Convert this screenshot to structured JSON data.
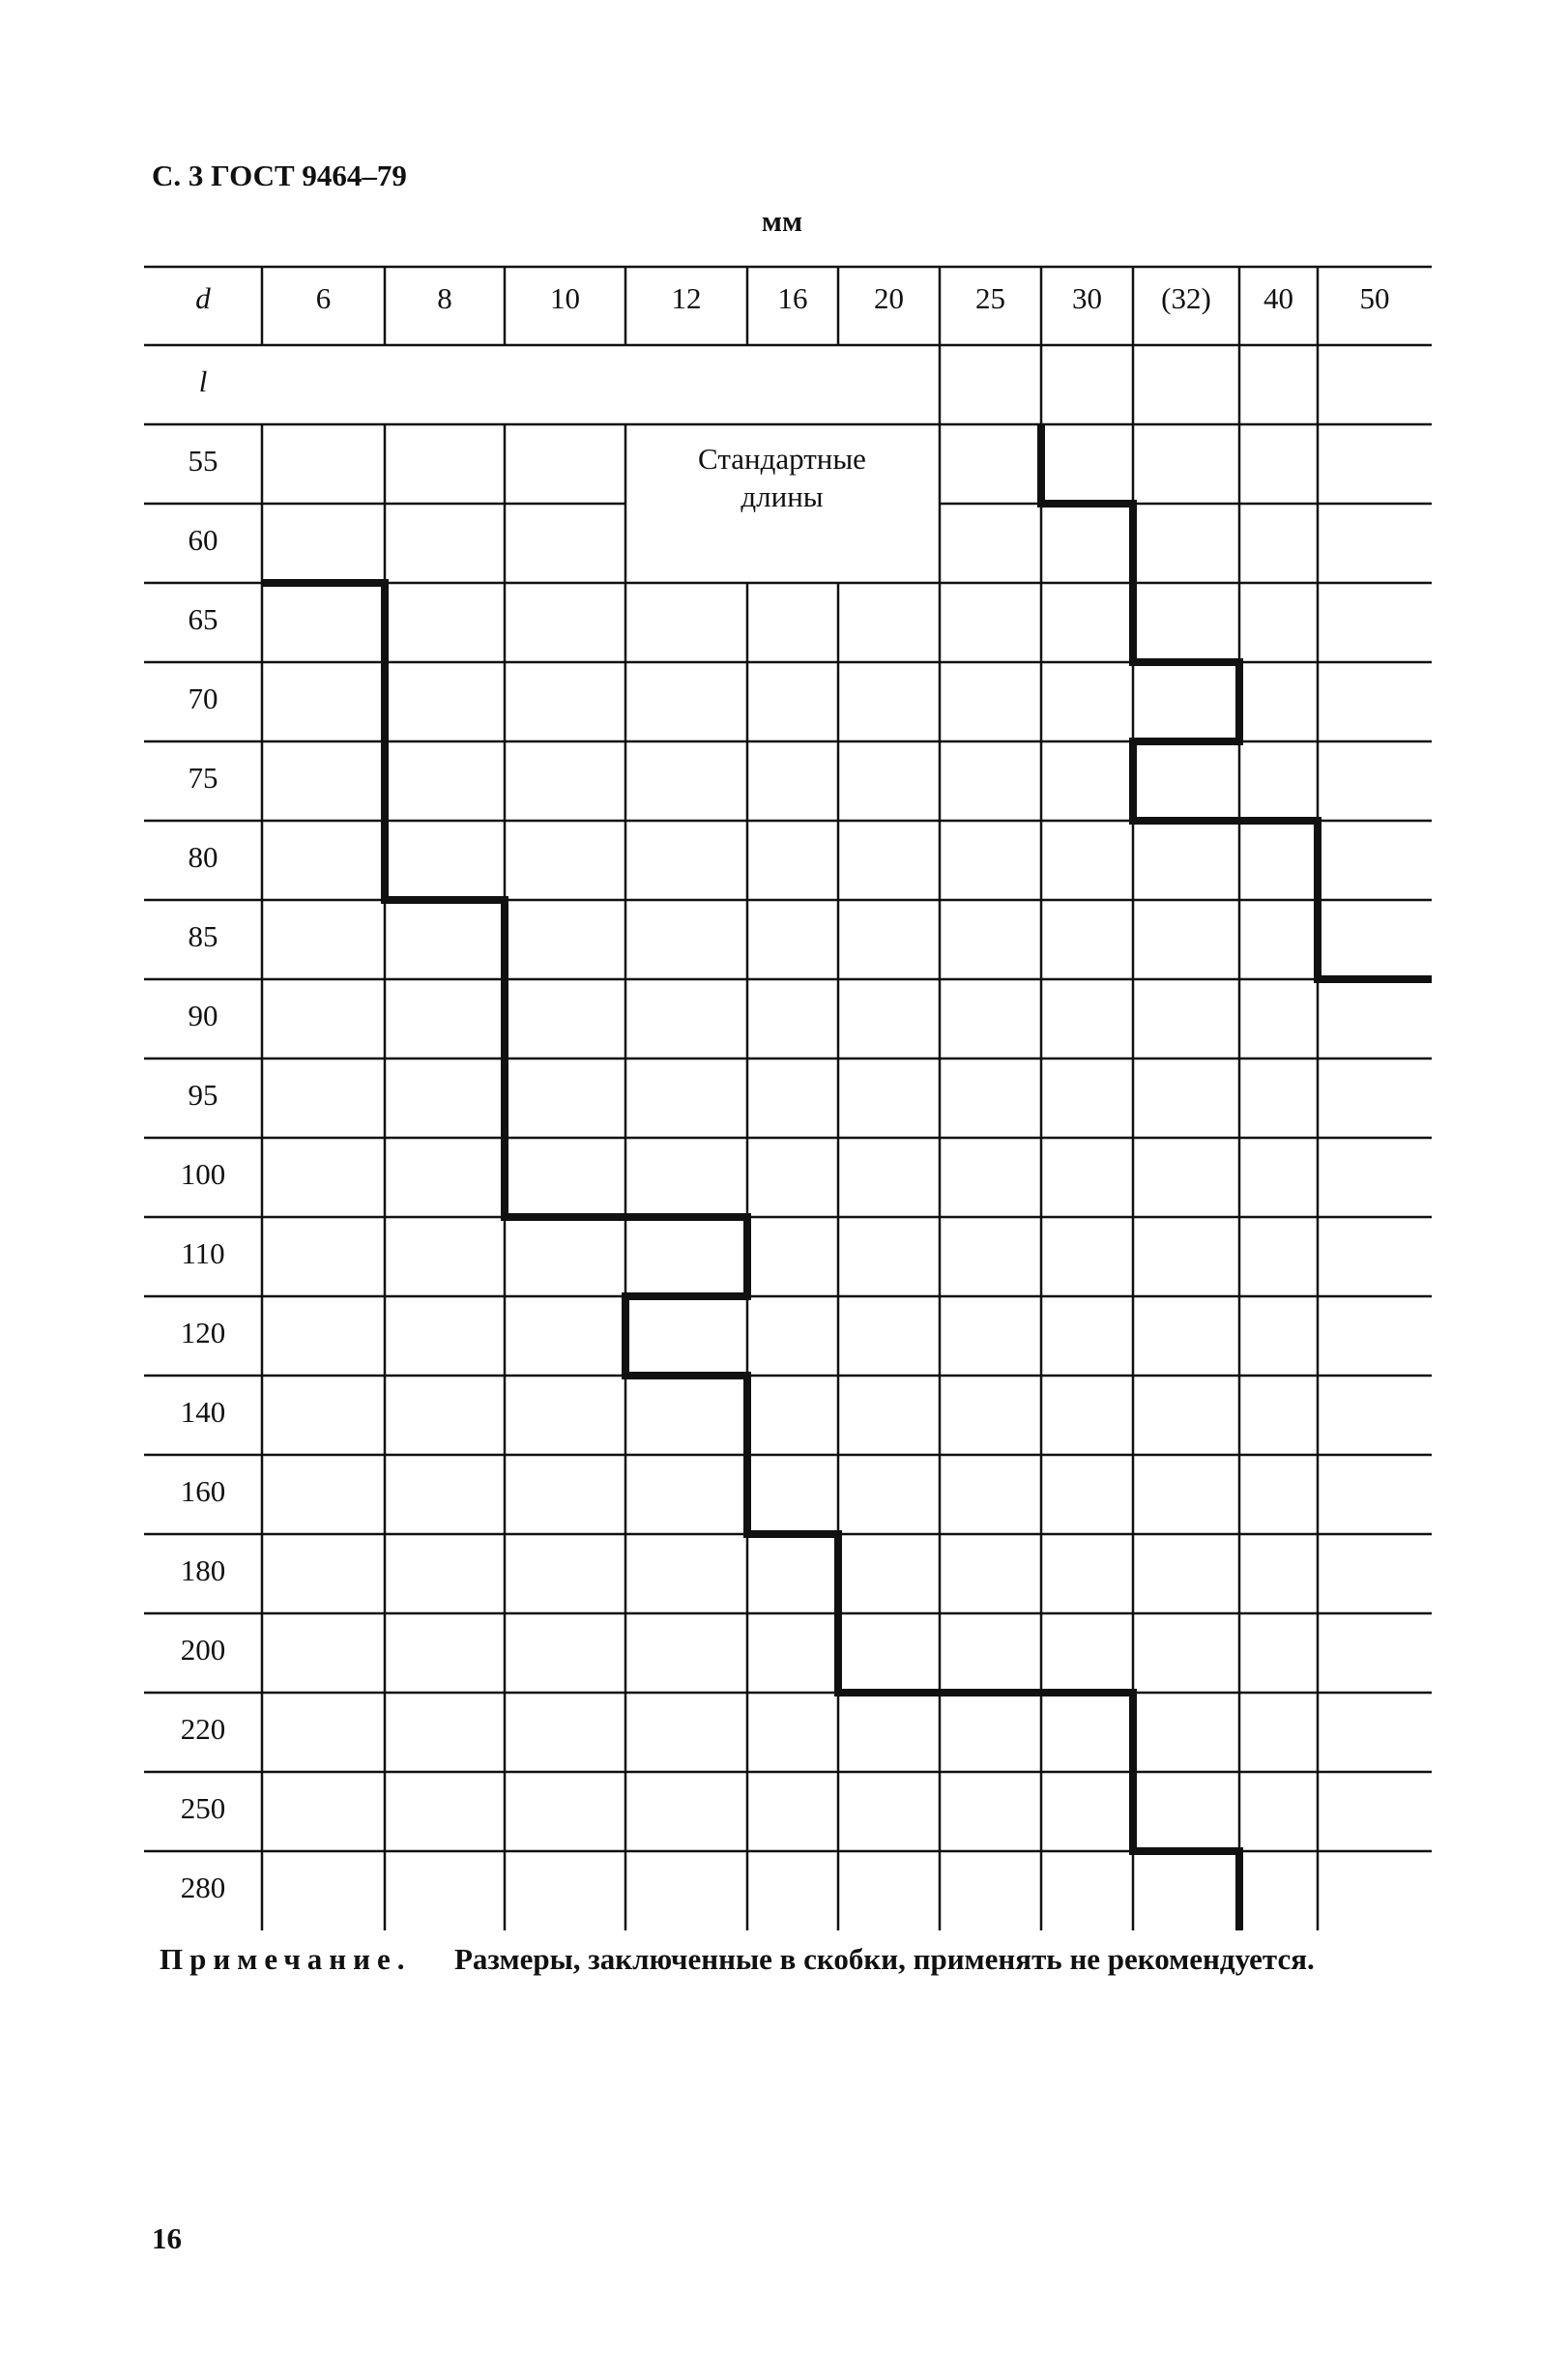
{
  "header": {
    "title": "С. 3 ГОСТ 9464–79",
    "units": "мм"
  },
  "table": {
    "d_label": "d",
    "l_label": "l",
    "d_values": [
      "6",
      "8",
      "10",
      "12",
      "16",
      "20",
      "25",
      "30",
      "(32)",
      "40",
      "50"
    ],
    "l_values": [
      "55",
      "60",
      "65",
      "70",
      "75",
      "80",
      "85",
      "90",
      "95",
      "100",
      "110",
      "120",
      "140",
      "160",
      "180",
      "200",
      "220",
      "250",
      "280"
    ],
    "region_label": [
      "Стандартные",
      "длины"
    ]
  },
  "note": {
    "label": "Примечание.",
    "text": "Размеры, заключенные в скобки, применять не рекомендуется."
  },
  "page_number": "16"
}
